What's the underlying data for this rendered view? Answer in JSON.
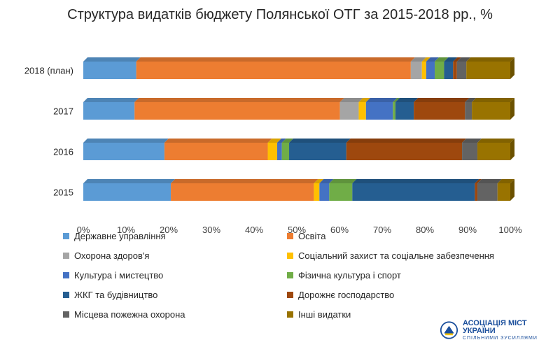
{
  "chart_data": {
    "type": "bar",
    "orientation": "horizontal",
    "stacked": "percent",
    "title": "Структура видатків бюджету Полянської ОТГ за 2015-2018 рр., %",
    "categories": [
      "2018 (план)",
      "2017",
      "2016",
      "2015"
    ],
    "xlim": [
      0,
      100
    ],
    "xticks": [
      "0%",
      "10%",
      "20%",
      "30%",
      "40%",
      "50%",
      "60%",
      "70%",
      "80%",
      "90%",
      "100%"
    ],
    "grid": false,
    "legend_position": "bottom",
    "series": [
      {
        "name": "Державне управління",
        "color": "#5b9bd5",
        "values": [
          12.4,
          12.0,
          19.0,
          20.5
        ]
      },
      {
        "name": "Освіта",
        "color": "#ed7d31",
        "values": [
          64.3,
          48.1,
          24.2,
          33.5
        ]
      },
      {
        "name": "Охорона здоров'я",
        "color": "#a5a5a5",
        "values": [
          2.6,
          4.4,
          0.0,
          0.0
        ]
      },
      {
        "name": "Соціальний захист та соціальне забезпечення",
        "color": "#ffc000",
        "values": [
          1.0,
          1.7,
          2.2,
          1.3
        ]
      },
      {
        "name": "Культура і мистецтво",
        "color": "#4472c4",
        "values": [
          2.0,
          6.3,
          1.1,
          2.3
        ]
      },
      {
        "name": "Фізична культура і спорт",
        "color": "#70ad47",
        "values": [
          2.2,
          0.6,
          1.7,
          5.4
        ]
      },
      {
        "name": "ЖКГ та будівництво",
        "color": "#255e91",
        "values": [
          2.1,
          4.3,
          13.4,
          28.7
        ]
      },
      {
        "name": "Дорожнє господарство",
        "color": "#9e480e",
        "values": [
          0.9,
          12.0,
          27.1,
          0.6
        ]
      },
      {
        "name": "Місцева пожежна охорона",
        "color": "#636363",
        "values": [
          2.2,
          1.6,
          3.6,
          4.7
        ]
      },
      {
        "name": "Інші видатки",
        "color": "#997300",
        "values": [
          10.3,
          9.0,
          7.7,
          3.0
        ]
      }
    ]
  },
  "logo": {
    "name": "АСОЦІАЦІЯ МІСТ УКРАЇНИ",
    "motto": "СПІЛЬНИМИ ЗУСИЛЛЯМИ"
  }
}
